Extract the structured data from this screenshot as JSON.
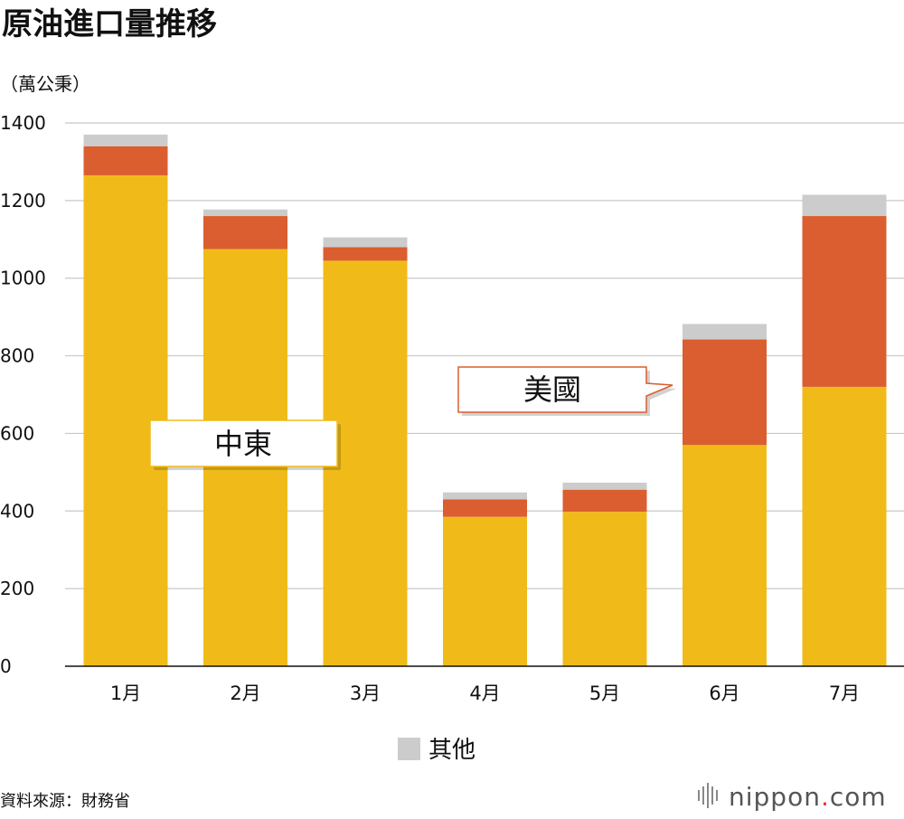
{
  "chart_data": {
    "type": "bar",
    "stacked": true,
    "title": "原油進口量推移",
    "unit_label": "（萬公秉）",
    "categories": [
      "1月",
      "2月",
      "3月",
      "4月",
      "5月",
      "6月",
      "7月"
    ],
    "series": [
      {
        "name": "中東",
        "color": "#F0BB18",
        "values": [
          1265,
          1075,
          1045,
          385,
          398,
          570,
          720
        ]
      },
      {
        "name": "美國",
        "color": "#DA5E2F",
        "values": [
          75,
          85,
          35,
          45,
          57,
          272,
          440
        ]
      },
      {
        "name": "其他",
        "color": "#CCCCCC",
        "values": [
          30,
          17,
          25,
          18,
          18,
          40,
          55
        ]
      }
    ],
    "ylim": [
      0,
      1400
    ],
    "yticks": [
      0,
      200,
      400,
      600,
      800,
      1000,
      1200,
      1400
    ],
    "grid": true,
    "legend": [
      {
        "label": "其他",
        "color": "#CCCCCC"
      }
    ],
    "callouts": [
      {
        "label": "中東",
        "series": "中東"
      },
      {
        "label": "美國",
        "series": "美國"
      }
    ]
  },
  "source": "資料來源：財務省",
  "brand": {
    "name": "nippon",
    "dot": ".",
    "suffix": "com",
    "accent": "#E8382C"
  }
}
